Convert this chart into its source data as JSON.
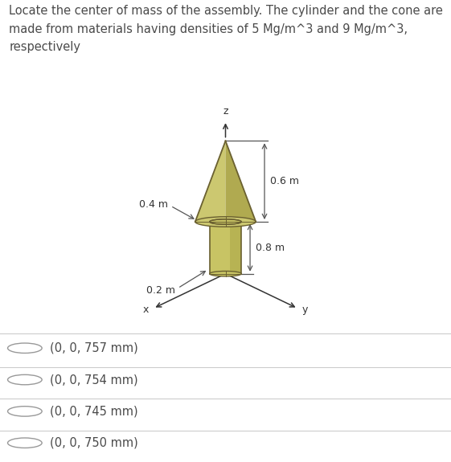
{
  "title_text": "Locate the center of mass of the assembly. The cylinder and the cone are\nmade from materials having densities of 5 Mg/m^3 and 9 Mg/m^3,\nrespectively",
  "title_fontsize": 10.5,
  "title_color": "#4a4a4a",
  "bg_color": "#ffffff",
  "label_04": "0.4 m",
  "label_06": "0.6 m",
  "label_02": "0.2 m",
  "label_08": "0.8 m",
  "axis_label_x": "x",
  "axis_label_y": "y",
  "axis_label_z": "z",
  "choices": [
    "(0, 0, 757 mm)",
    "(0, 0, 754 mm)",
    "(0, 0, 745 mm)",
    "(0, 0, 750 mm)"
  ],
  "choice_fontsize": 10.5,
  "choice_color": "#4a4a4a",
  "separator_color": "#cccccc",
  "cone_color": "#ccc870",
  "cone_dark": "#b0aa50",
  "cylinder_color": "#c8c464",
  "cylinder_dark": "#a8a444",
  "edge_color": "#6a6030",
  "dim_line_color": "#555555",
  "axis_color": "#333333"
}
